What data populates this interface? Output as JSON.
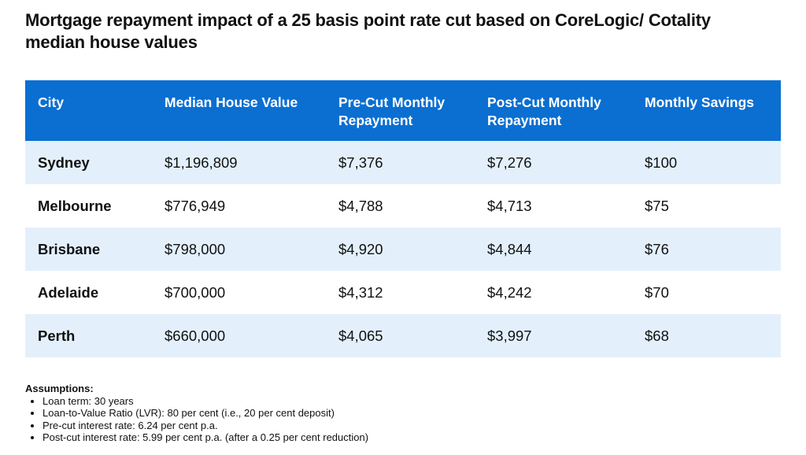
{
  "title": "Mortgage repayment impact of a 25 basis point rate cut based on CoreLogic/ Cotality median house values",
  "table": {
    "headers": [
      "City",
      "Median House Value",
      "Pre-Cut Monthly Repayment",
      "Post-Cut Monthly Repayment",
      "Monthly Savings"
    ],
    "rows": [
      [
        "Sydney",
        "$1,196,809",
        "$7,376",
        "$7,276",
        "$100"
      ],
      [
        "Melbourne",
        "$776,949",
        "$4,788",
        "$4,713",
        "$75"
      ],
      [
        "Brisbane",
        "$798,000",
        "$4,920",
        "$4,844",
        "$76"
      ],
      [
        "Adelaide",
        "$700,000",
        "$4,312",
        "$4,242",
        "$70"
      ],
      [
        "Perth",
        "$660,000",
        "$4,065",
        "$3,997",
        "$68"
      ]
    ]
  },
  "colors": {
    "header_bg": "#0a6fd1",
    "row_shade": "#e3f0fc"
  },
  "assumptions": {
    "heading": "Assumptions:",
    "items": [
      "Loan term: 30 years",
      "Loan-to-Value Ratio (LVR): 80 per cent  (i.e., 20 per cent  deposit)",
      "Pre-cut interest rate: 6.24 per cent  p.a.",
      "Post-cut interest rate: 5.99 per cent  p.a. (after a 0.25 per cent reduction)"
    ]
  }
}
